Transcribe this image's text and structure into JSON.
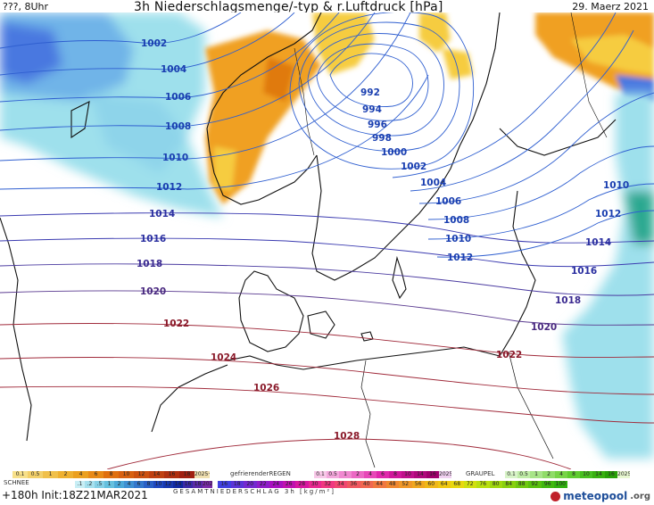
{
  "header": {
    "left": "???, 8Uhr",
    "title": "3h Niederschlagsmenge/-typ & r.Luftdruck [hPa]",
    "date": "29. Maerz 2021"
  },
  "isobars": [
    {
      "label": "1002",
      "color": "#1a3fb0"
    },
    {
      "label": "1004",
      "color": "#1a3fb0"
    },
    {
      "label": "1006",
      "color": "#1a3fb0"
    },
    {
      "label": "1008",
      "color": "#1a3fb0"
    },
    {
      "label": "1010",
      "color": "#1a3fb0"
    },
    {
      "label": "1012",
      "color": "#1a3fb0"
    },
    {
      "label": "1014",
      "color": "#2a2fa0"
    },
    {
      "label": "1016",
      "color": "#2a2fa0"
    },
    {
      "label": "1018",
      "color": "#3a2a90"
    },
    {
      "label": "1020",
      "color": "#4a2a80"
    },
    {
      "label": "1022",
      "color": "#8a1a2a"
    },
    {
      "label": "1024",
      "color": "#8a1a2a"
    },
    {
      "label": "1026",
      "color": "#8a1a2a"
    },
    {
      "label": "1028",
      "color": "#8a1a2a"
    },
    {
      "label": "992",
      "color": "#1a3fb0"
    },
    {
      "label": "994",
      "color": "#1a3fb0"
    },
    {
      "label": "996",
      "color": "#1a3fb0"
    },
    {
      "label": "998",
      "color": "#1a3fb0"
    },
    {
      "label": "1000",
      "color": "#1a3fb0"
    },
    {
      "label": "1002",
      "color": "#1a3fb0"
    },
    {
      "label": "1004",
      "color": "#1a3fb0"
    },
    {
      "label": "1006",
      "color": "#1a3fb0"
    },
    {
      "label": "1008",
      "color": "#1a3fb0"
    },
    {
      "label": "1010",
      "color": "#1a3fb0"
    },
    {
      "label": "1012",
      "color": "#1a3fb0"
    },
    {
      "label": "1010",
      "color": "#1a3fb0"
    },
    {
      "label": "1012",
      "color": "#1a3fb0"
    },
    {
      "label": "1014",
      "color": "#2a2fa0"
    },
    {
      "label": "1016",
      "color": "#2a2fa0"
    },
    {
      "label": "1018",
      "color": "#3a2a90"
    },
    {
      "label": "1020",
      "color": "#4a2a80"
    },
    {
      "label": "1022",
      "color": "#8a1a2a"
    }
  ],
  "legend": {
    "rain": {
      "label": "",
      "items": [
        "0.1",
        "0.5",
        "1",
        "2",
        "4",
        "6",
        "8",
        "10",
        "12",
        "14",
        "16",
        "18",
        "2025+"
      ],
      "colors": [
        "#f7e08a",
        "#f3d06a",
        "#f0c04a",
        "#eeb030",
        "#eba020",
        "#e88a18",
        "#e07010",
        "#d86010",
        "#cc5010",
        "#c04010",
        "#b03010",
        "#a02010",
        "#f0e0b0"
      ]
    },
    "snow": {
      "label": "SCHNEE",
      "items": [
        ".1",
        ".2",
        ".5",
        "1",
        "2",
        "4",
        "6",
        "8",
        "10",
        "12",
        "14",
        "16",
        "18",
        "2025+"
      ],
      "colors": [
        "#c8eef5",
        "#a6e0ee",
        "#86d0e6",
        "#66c0de",
        "#4aa8d8",
        "#3e90d2",
        "#3478cc",
        "#2a60c6",
        "#2048c0",
        "#1838b0",
        "#1028a0",
        "#3a2aa8",
        "#5a2aa8",
        "#7a2aa8"
      ]
    },
    "freezing": {
      "label": "gefrierenderREGEN",
      "items": [
        "0.1",
        "0.5",
        "1",
        "2",
        "4",
        "6",
        "8",
        "10",
        "14",
        "16",
        "2025+"
      ],
      "colors": [
        "#f8c8e8",
        "#f4a8dc",
        "#f088d0",
        "#ec68c4",
        "#e848b8",
        "#e028ac",
        "#d0189c",
        "#c0108c",
        "#b0087c",
        "#a0006c",
        "#f0d0f0"
      ]
    },
    "graupel": {
      "label": "GRAUPEL",
      "items": [
        "0.1",
        "0.5",
        "1",
        "2",
        "4",
        "8",
        "10",
        "14",
        "16",
        "2025+"
      ],
      "colors": [
        "#d8f4c8",
        "#c0eca8",
        "#a8e488",
        "#90dc68",
        "#78d448",
        "#60cc30",
        "#48c020",
        "#38b010",
        "#28a008",
        "#e8f8d0"
      ]
    },
    "total": {
      "label": "GESAMTNIEDERSCHLAG 3h [kg/m²]",
      "items": [
        "16",
        "18",
        "20",
        "22",
        "24",
        "26",
        "28",
        "30",
        "32",
        "34",
        "36",
        "40",
        "44",
        "48",
        "52",
        "56",
        "60",
        "64",
        "68",
        "72",
        "76",
        "80",
        "84",
        "88",
        "92",
        "96",
        "100"
      ],
      "colors": [
        "#4040e0",
        "#5a34d8",
        "#7428d0",
        "#8e1cc8",
        "#a810c0",
        "#c010b0",
        "#d818a0",
        "#e82890",
        "#f03880",
        "#f04870",
        "#f05860",
        "#f06850",
        "#f07840",
        "#f08830",
        "#f09828",
        "#f0a820",
        "#f0b818",
        "#f0c810",
        "#e8d810",
        "#d0e010",
        "#b8e010",
        "#a0d810",
        "#88d010",
        "#70c810",
        "#58c010",
        "#40b810",
        "#30b010"
      ]
    }
  },
  "footer": {
    "run": "+180h  Init:18Z21MAR2021",
    "logo": "meteopool",
    "logo_tld": ".org"
  },
  "colors": {
    "land_line": "#111111",
    "sea_bg": "#ffffff",
    "snow_light": "#9ee0ec",
    "snow_mid": "#6fb4e8",
    "snow_blue": "#4a78e0",
    "rain_orange": "#f0a020",
    "rain_yellow": "#f6cc40"
  }
}
